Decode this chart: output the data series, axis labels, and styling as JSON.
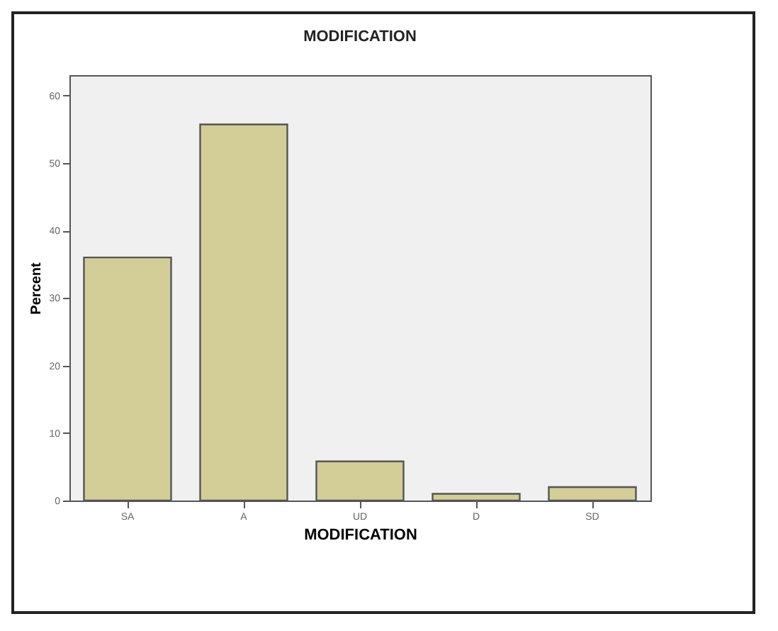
{
  "chart_data": {
    "type": "bar",
    "title": "MODIFICATION",
    "xlabel": "MODIFICATION",
    "ylabel": "Percent",
    "categories": [
      "SA",
      "A",
      "UD",
      "D",
      "SD"
    ],
    "values": [
      36.0,
      55.7,
      5.8,
      1.0,
      2.0
    ],
    "color": "#d3cd98",
    "ylim": [
      0,
      63
    ],
    "yticks": [
      0,
      10,
      20,
      30,
      40,
      50,
      60
    ],
    "grid": false
  }
}
